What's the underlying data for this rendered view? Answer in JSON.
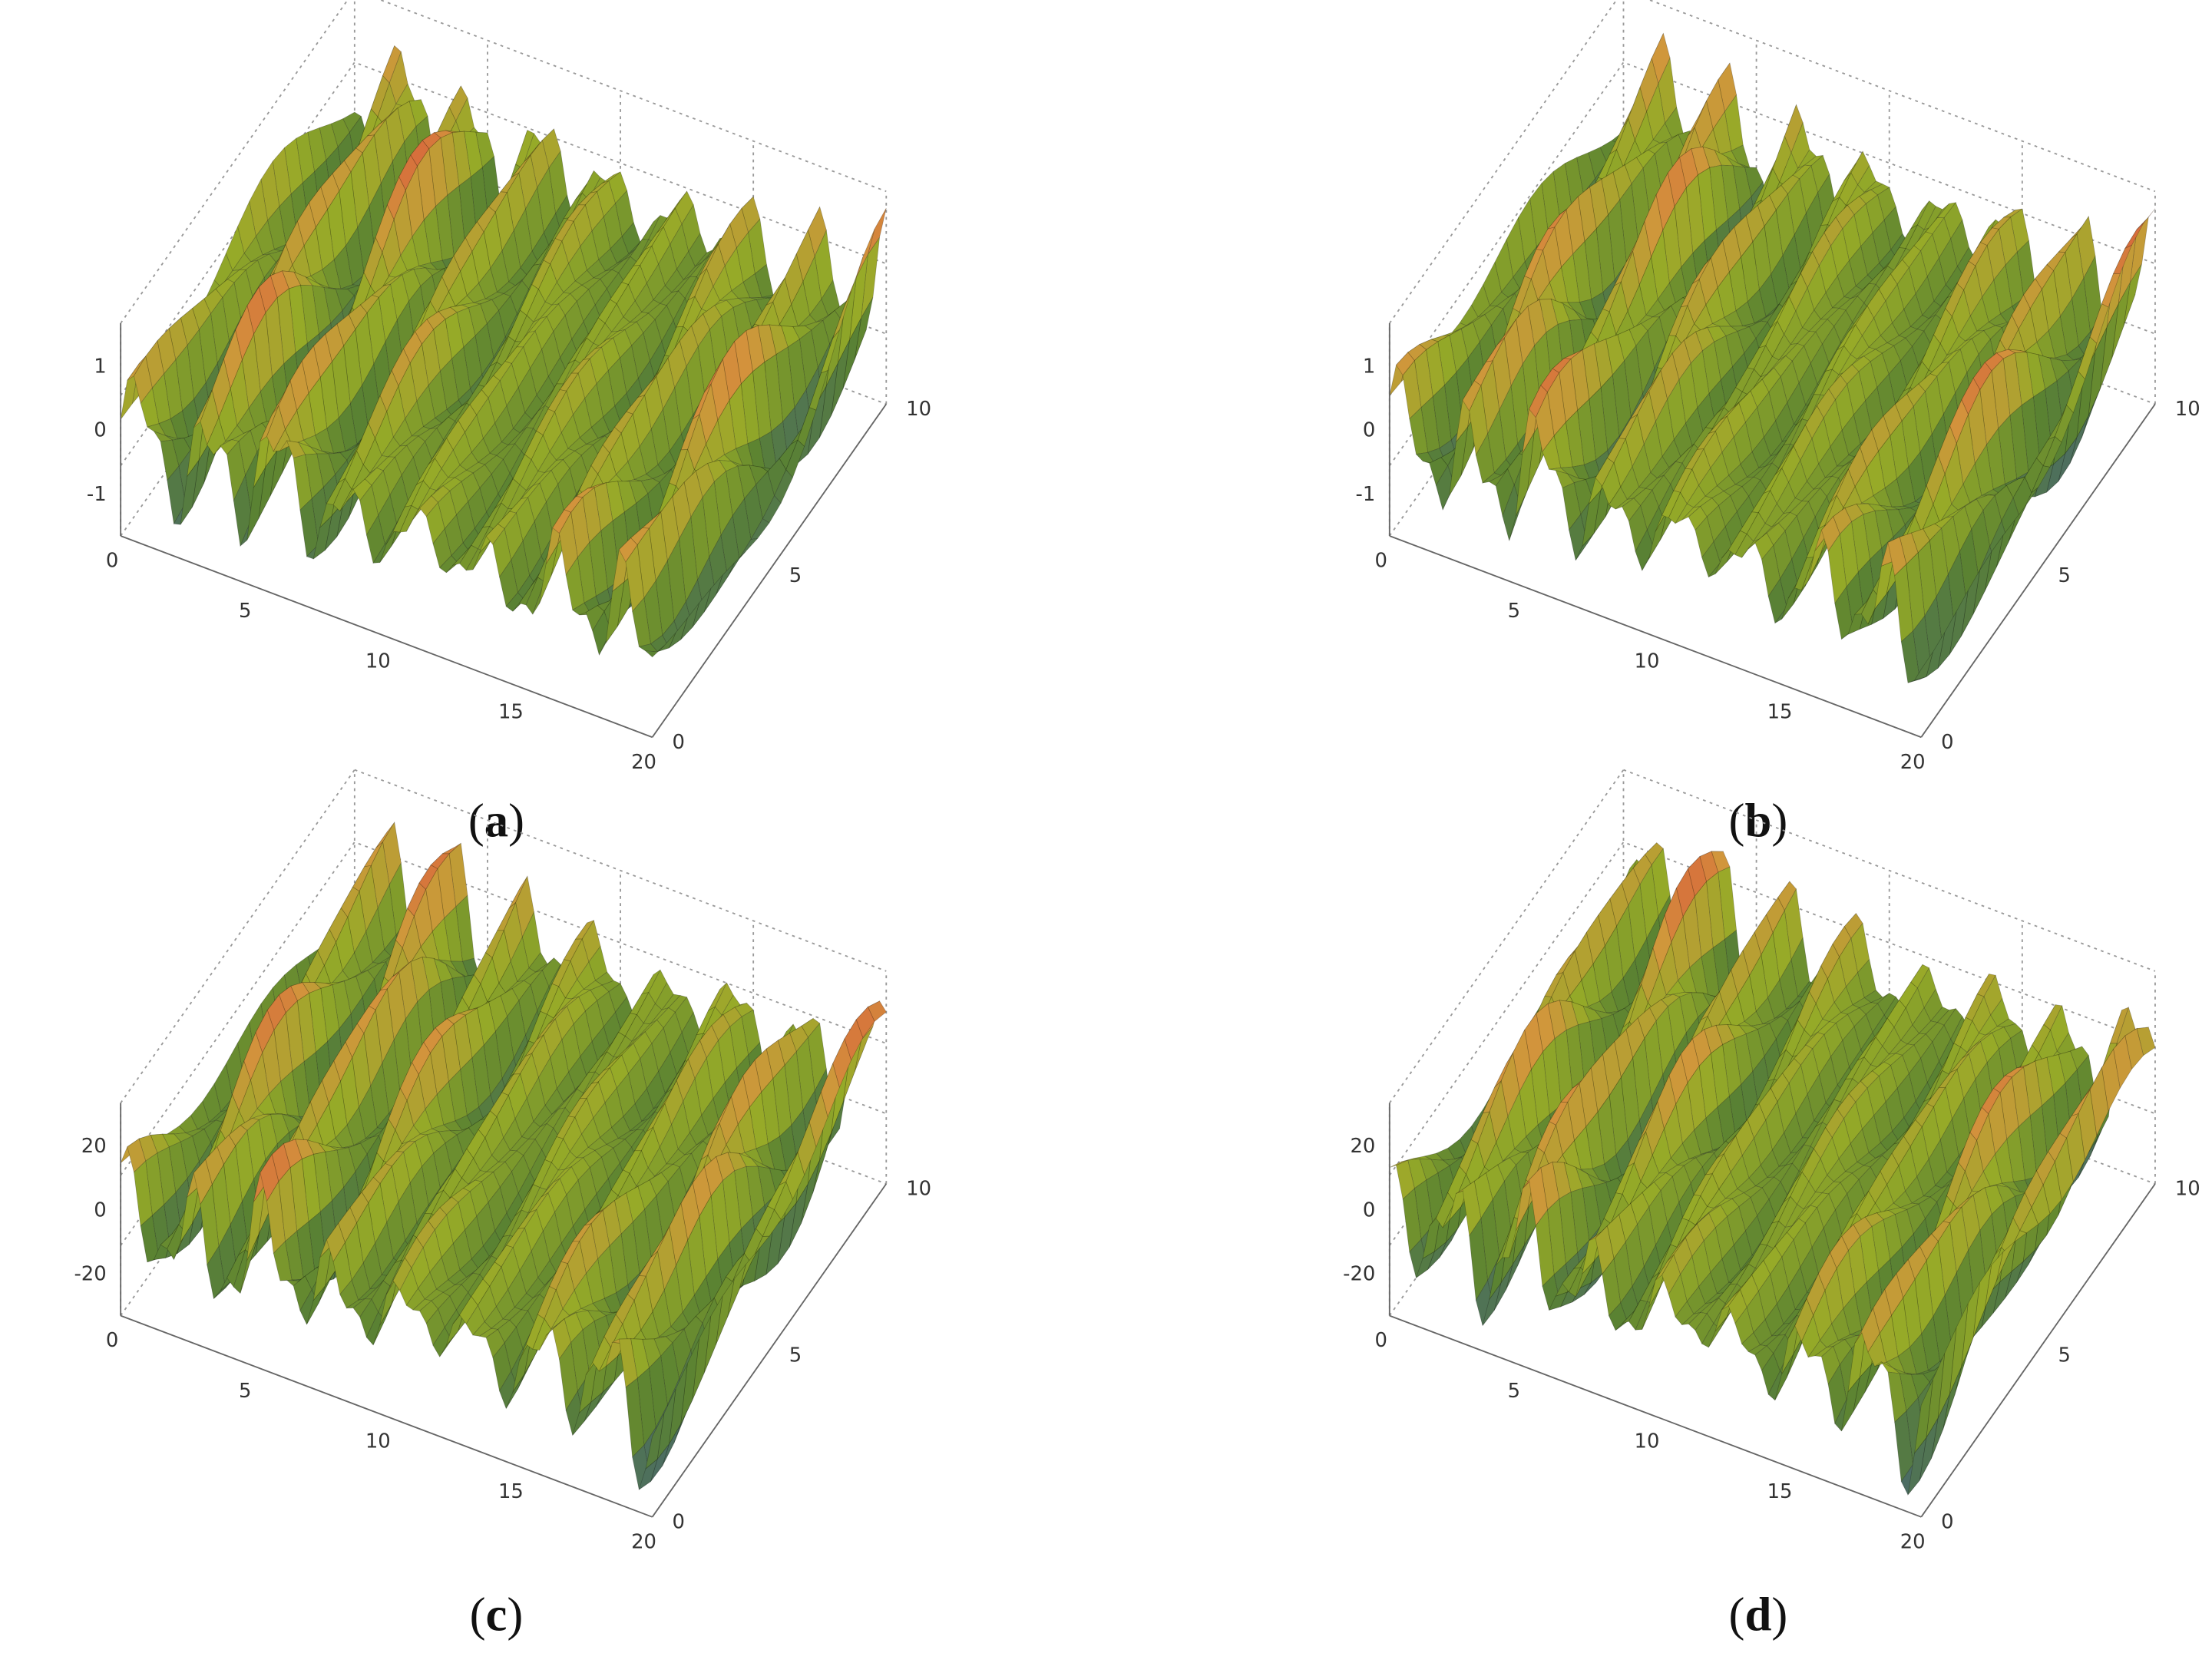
{
  "panels": [
    {
      "caption": [
        "(",
        "a",
        ")"
      ],
      "zticks": [
        1,
        0,
        -1
      ],
      "xticks": [
        0,
        5,
        10,
        15,
        20
      ],
      "yticks": [
        0,
        5,
        10
      ]
    },
    {
      "caption": [
        "(",
        "b",
        ")"
      ],
      "zticks": [
        1,
        0,
        -1
      ],
      "xticks": [
        0,
        5,
        10,
        15,
        20
      ],
      "yticks": [
        0,
        5,
        10
      ]
    },
    {
      "caption": [
        "(",
        "c",
        ")"
      ],
      "zticks": [
        20,
        0,
        -20
      ],
      "xticks": [
        0,
        5,
        10,
        15,
        20
      ],
      "yticks": [
        0,
        5,
        10
      ]
    },
    {
      "caption": [
        "(",
        "d",
        ")"
      ],
      "zticks": [
        20,
        0,
        -20
      ],
      "xticks": [
        0,
        5,
        10,
        15,
        20
      ],
      "yticks": [
        0,
        5,
        10
      ]
    }
  ]
}
